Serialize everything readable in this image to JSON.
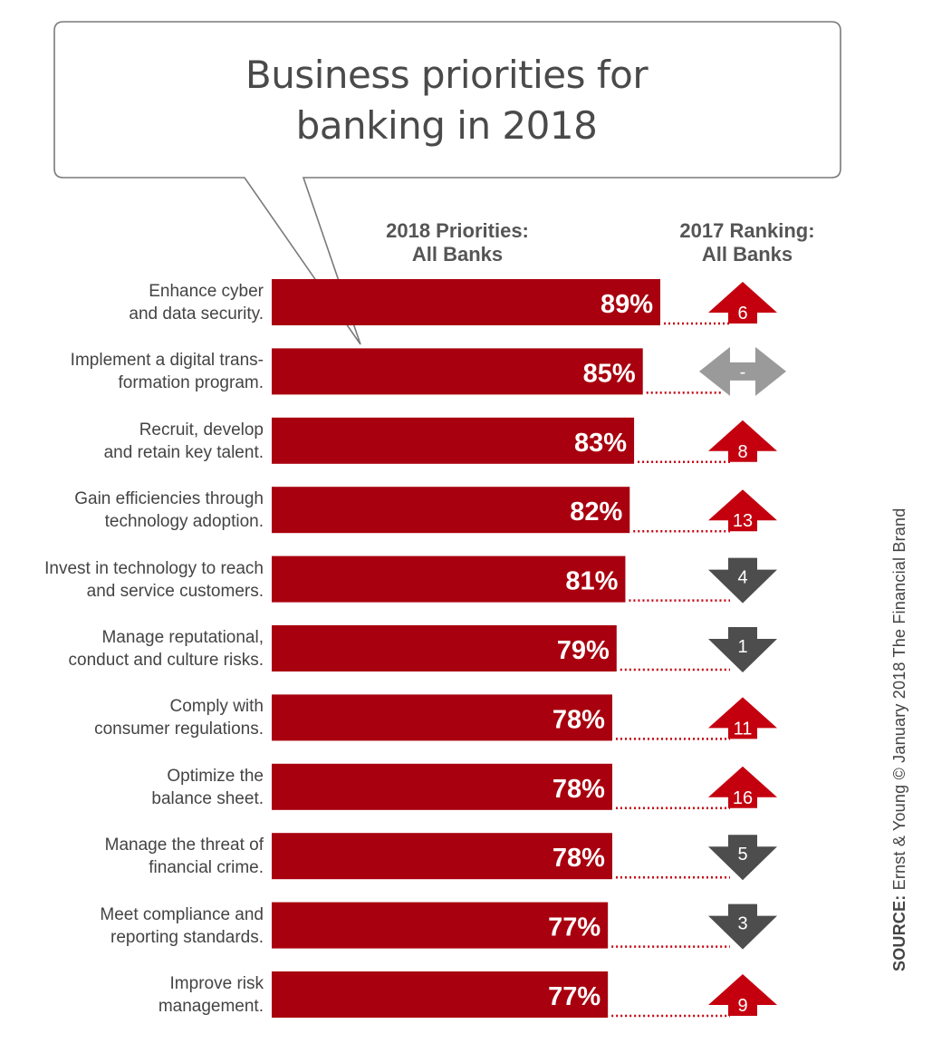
{
  "title": {
    "line1": "Business priorities for",
    "line2": "banking in 2018"
  },
  "headers": {
    "priorities_line1": "2018 Priorities:",
    "priorities_line2": "All Banks",
    "ranking_line1": "2017 Ranking:",
    "ranking_line2": "All Banks"
  },
  "source": {
    "label": "SOURCE:",
    "text": " Ernst & Young © January 2018 The Financial Brand"
  },
  "colors": {
    "bar": "#a8000e",
    "arrow_up": "#c4000f",
    "arrow_down": "#4d4d4d",
    "arrow_same": "#9a9a9a",
    "dots": "#c4000f"
  },
  "chart_data": {
    "type": "bar",
    "orientation": "horizontal",
    "categories": [
      [
        "Enhance cyber",
        "and data security."
      ],
      [
        "Implement a digital trans-",
        "formation program."
      ],
      [
        "Recruit, develop",
        "and retain key talent."
      ],
      [
        "Gain efficiencies through",
        "technology adoption."
      ],
      [
        "Invest in technology to reach",
        "and service customers."
      ],
      [
        "Manage reputational,",
        "conduct and culture risks."
      ],
      [
        "Comply with",
        "consumer regulations."
      ],
      [
        "Optimize the",
        "balance sheet."
      ],
      [
        "Manage the threat of",
        "financial crime."
      ],
      [
        "Meet compliance and",
        "reporting standards."
      ],
      [
        "Improve risk",
        "management."
      ]
    ],
    "values": [
      89,
      85,
      83,
      82,
      81,
      79,
      78,
      78,
      78,
      77,
      77
    ],
    "value_labels": [
      "89%",
      "85%",
      "83%",
      "82%",
      "81%",
      "79%",
      "78%",
      "78%",
      "78%",
      "77%",
      "77%"
    ],
    "ranking_2017": [
      "6",
      "-",
      "8",
      "13",
      "4",
      "1",
      "11",
      "16",
      "5",
      "3",
      "9"
    ],
    "ranking_direction": [
      "up",
      "same",
      "up",
      "up",
      "down",
      "down",
      "up",
      "up",
      "down",
      "down",
      "up"
    ]
  }
}
